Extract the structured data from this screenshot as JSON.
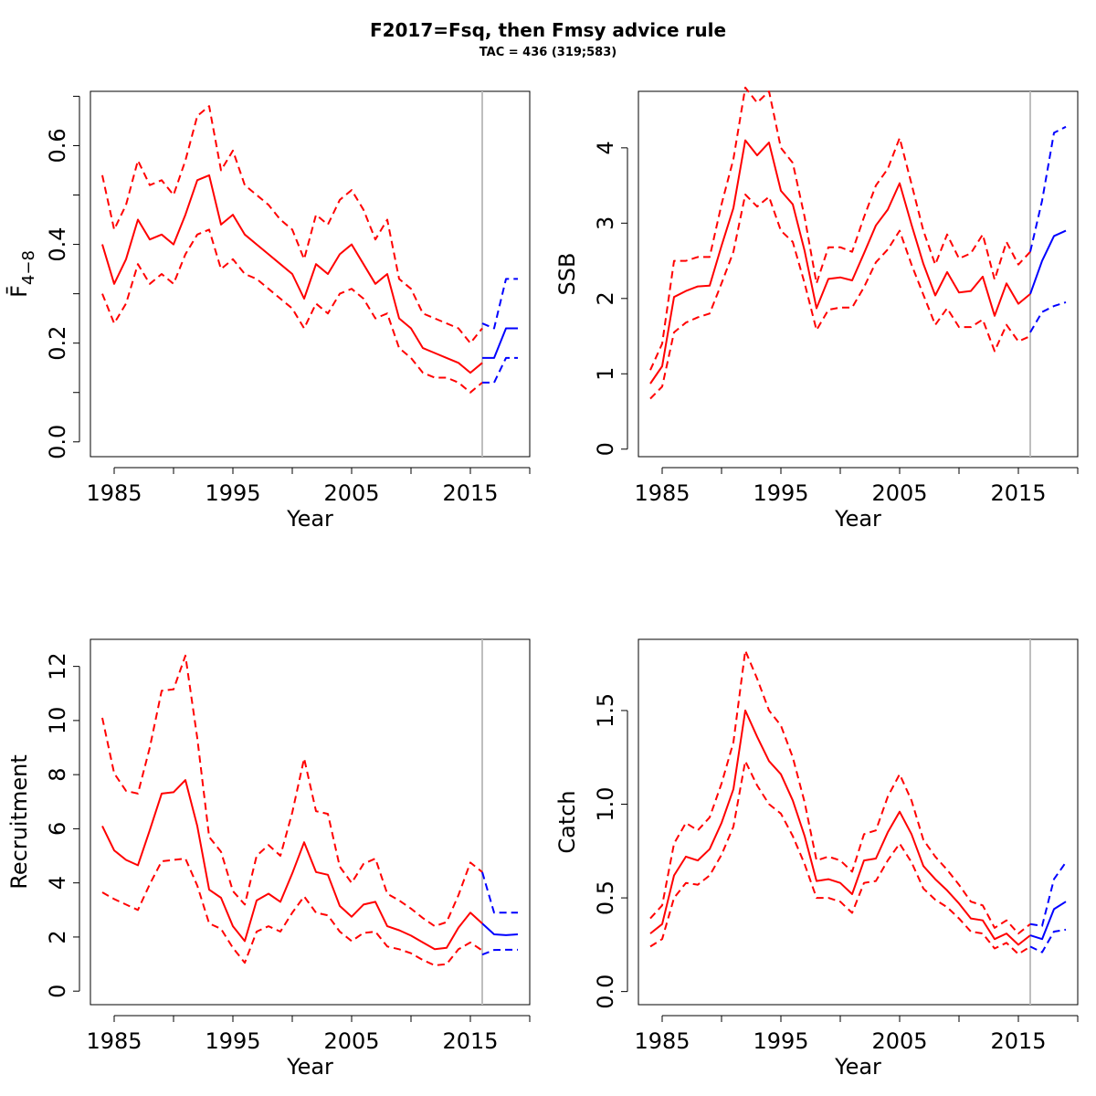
{
  "title": "F2017=Fsq, then  Fmsy advice rule",
  "subtitle": "TAC = 436 (319;583)",
  "colors": {
    "history": "#ff0000",
    "forecast": "#0000ff",
    "divider": "#bebebe",
    "axes": "#000000"
  },
  "divider_year": 2016,
  "chart_data": [
    {
      "type": "line",
      "xlabel": "Year",
      "ylabel": "F̄",
      "ylabel_subscript": "4−8",
      "xlim": [
        1983,
        2020
      ],
      "ylim": [
        -0.03,
        0.71
      ],
      "xticks": [
        1985,
        1990,
        1995,
        2000,
        2005,
        2010,
        2015,
        2020
      ],
      "xtick_labels": [
        "1985",
        "",
        "1995",
        "",
        "2005",
        "",
        "2015",
        ""
      ],
      "yticks": [
        0.0,
        0.1,
        0.2,
        0.3,
        0.4,
        0.5,
        0.6,
        0.7
      ],
      "ytick_labels": [
        "0.0",
        "",
        "0.2",
        "",
        "0.4",
        "",
        "0.6",
        ""
      ],
      "history": {
        "x": [
          1984,
          1985,
          1986,
          1987,
          1988,
          1989,
          1990,
          1991,
          1992,
          1993,
          1994,
          1995,
          1996,
          1997,
          1998,
          1999,
          2000,
          2001,
          2002,
          2003,
          2004,
          2005,
          2006,
          2007,
          2008,
          2009,
          2010,
          2011,
          2012,
          2013,
          2014,
          2015,
          2016
        ],
        "estimate": [
          0.4,
          0.32,
          0.37,
          0.45,
          0.41,
          0.42,
          0.4,
          0.46,
          0.53,
          0.54,
          0.44,
          0.46,
          0.42,
          0.4,
          0.38,
          0.36,
          0.34,
          0.29,
          0.36,
          0.34,
          0.38,
          0.4,
          0.36,
          0.32,
          0.34,
          0.25,
          0.23,
          0.19,
          0.18,
          0.17,
          0.16,
          0.14,
          0.16
        ],
        "lower": [
          0.3,
          0.24,
          0.28,
          0.36,
          0.32,
          0.34,
          0.32,
          0.38,
          0.42,
          0.43,
          0.35,
          0.37,
          0.34,
          0.33,
          0.31,
          0.29,
          0.27,
          0.23,
          0.28,
          0.26,
          0.3,
          0.31,
          0.29,
          0.25,
          0.26,
          0.19,
          0.17,
          0.14,
          0.13,
          0.13,
          0.12,
          0.1,
          0.12
        ],
        "upper": [
          0.54,
          0.43,
          0.48,
          0.57,
          0.52,
          0.53,
          0.5,
          0.57,
          0.66,
          0.68,
          0.55,
          0.59,
          0.52,
          0.5,
          0.48,
          0.45,
          0.43,
          0.37,
          0.46,
          0.44,
          0.49,
          0.51,
          0.47,
          0.41,
          0.45,
          0.33,
          0.31,
          0.26,
          0.25,
          0.24,
          0.23,
          0.2,
          0.23
        ]
      },
      "forecast": {
        "x": [
          2016,
          2017,
          2018,
          2019
        ],
        "estimate": [
          0.17,
          0.17,
          0.23,
          0.23
        ],
        "lower": [
          0.12,
          0.12,
          0.17,
          0.17
        ],
        "upper": [
          0.24,
          0.23,
          0.33,
          0.33
        ]
      }
    },
    {
      "type": "line",
      "xlabel": "Year",
      "ylabel": "SSB",
      "xlim": [
        1983,
        2020
      ],
      "ylim": [
        -0.1,
        4.75
      ],
      "xticks": [
        1985,
        1990,
        1995,
        2000,
        2005,
        2010,
        2015,
        2020
      ],
      "xtick_labels": [
        "1985",
        "",
        "1995",
        "",
        "2005",
        "",
        "2015",
        ""
      ],
      "yticks": [
        0,
        1,
        2,
        3,
        4
      ],
      "ytick_labels": [
        "0",
        "1",
        "2",
        "3",
        "4"
      ],
      "history": {
        "x": [
          1984,
          1985,
          1986,
          1987,
          1988,
          1989,
          1990,
          1991,
          1992,
          1993,
          1994,
          1995,
          1996,
          1997,
          1998,
          1999,
          2000,
          2001,
          2002,
          2003,
          2004,
          2005,
          2006,
          2007,
          2008,
          2009,
          2010,
          2011,
          2012,
          2013,
          2014,
          2015,
          2016
        ],
        "estimate": [
          0.87,
          1.1,
          2.02,
          2.1,
          2.16,
          2.17,
          2.7,
          3.2,
          4.1,
          3.9,
          4.07,
          3.43,
          3.25,
          2.63,
          1.87,
          2.26,
          2.28,
          2.24,
          2.6,
          2.97,
          3.18,
          3.53,
          2.98,
          2.46,
          2.04,
          2.35,
          2.08,
          2.1,
          2.29,
          1.77,
          2.2,
          1.93,
          2.06
        ],
        "lower": [
          0.67,
          0.83,
          1.55,
          1.68,
          1.75,
          1.8,
          2.2,
          2.62,
          3.38,
          3.22,
          3.35,
          2.9,
          2.75,
          2.2,
          1.58,
          1.85,
          1.88,
          1.88,
          2.15,
          2.48,
          2.65,
          2.9,
          2.45,
          2.05,
          1.65,
          1.87,
          1.62,
          1.62,
          1.72,
          1.3,
          1.65,
          1.43,
          1.5
        ],
        "upper": [
          1.05,
          1.4,
          2.5,
          2.5,
          2.55,
          2.55,
          3.25,
          3.85,
          4.8,
          4.6,
          4.75,
          4.0,
          3.8,
          3.08,
          2.2,
          2.68,
          2.68,
          2.62,
          3.08,
          3.5,
          3.72,
          4.13,
          3.52,
          2.9,
          2.45,
          2.85,
          2.53,
          2.6,
          2.85,
          2.25,
          2.75,
          2.45,
          2.62
        ]
      },
      "forecast": {
        "x": [
          2016,
          2017,
          2018,
          2019
        ],
        "estimate": [
          2.06,
          2.5,
          2.83,
          2.9
        ],
        "lower": [
          1.55,
          1.82,
          1.9,
          1.95
        ],
        "upper": [
          2.62,
          3.3,
          4.2,
          4.28
        ]
      }
    },
    {
      "type": "line",
      "xlabel": "Year",
      "ylabel": "Recruitment",
      "xlim": [
        1983,
        2020
      ],
      "ylim": [
        -0.5,
        13
      ],
      "xticks": [
        1985,
        1990,
        1995,
        2000,
        2005,
        2010,
        2015,
        2020
      ],
      "xtick_labels": [
        "1985",
        "",
        "1995",
        "",
        "2005",
        "",
        "2015",
        ""
      ],
      "yticks": [
        0,
        2,
        4,
        6,
        8,
        10,
        12
      ],
      "ytick_labels": [
        "0",
        "2",
        "4",
        "6",
        "8",
        "10",
        "12"
      ],
      "history": {
        "x": [
          1984,
          1985,
          1986,
          1987,
          1988,
          1989,
          1990,
          1991,
          1992,
          1993,
          1994,
          1995,
          1996,
          1997,
          1998,
          1999,
          2000,
          2001,
          2002,
          2003,
          2004,
          2005,
          2006,
          2007,
          2008,
          2009,
          2010,
          2011,
          2012,
          2013,
          2014,
          2015,
          2016
        ],
        "estimate": [
          6.1,
          5.2,
          4.85,
          4.65,
          5.95,
          7.3,
          7.35,
          7.8,
          6.1,
          3.75,
          3.45,
          2.4,
          1.85,
          3.35,
          3.6,
          3.3,
          4.35,
          5.5,
          4.4,
          4.3,
          3.15,
          2.75,
          3.2,
          3.3,
          2.4,
          2.25,
          2.05,
          1.8,
          1.55,
          1.6,
          2.35,
          2.9,
          2.5
        ],
        "lower": [
          3.65,
          3.4,
          3.2,
          3.0,
          3.95,
          4.8,
          4.85,
          4.9,
          3.9,
          2.5,
          2.3,
          1.6,
          1.05,
          2.2,
          2.4,
          2.2,
          2.9,
          3.5,
          2.9,
          2.8,
          2.2,
          1.85,
          2.15,
          2.2,
          1.65,
          1.55,
          1.4,
          1.15,
          0.95,
          1.0,
          1.55,
          1.8,
          1.5
        ],
        "upper": [
          10.1,
          8.05,
          7.4,
          7.3,
          9.0,
          11.1,
          11.15,
          12.4,
          9.35,
          5.7,
          5.15,
          3.7,
          3.2,
          5.0,
          5.4,
          5.0,
          6.6,
          8.6,
          6.65,
          6.55,
          4.6,
          4.0,
          4.7,
          4.9,
          3.6,
          3.35,
          3.05,
          2.7,
          2.4,
          2.55,
          3.55,
          4.75,
          4.4
        ]
      },
      "forecast": {
        "x": [
          2016,
          2017,
          2018,
          2019
        ],
        "estimate": [
          2.5,
          2.1,
          2.07,
          2.1
        ],
        "lower": [
          1.35,
          1.52,
          1.53,
          1.53
        ],
        "upper": [
          4.4,
          2.9,
          2.9,
          2.9
        ]
      }
    },
    {
      "type": "line",
      "xlabel": "Year",
      "ylabel": "Catch",
      "xlim": [
        1983,
        2020
      ],
      "ylim": [
        -0.07,
        1.88
      ],
      "xticks": [
        1985,
        1990,
        1995,
        2000,
        2005,
        2010,
        2015,
        2020
      ],
      "xtick_labels": [
        "1985",
        "",
        "1995",
        "",
        "2005",
        "",
        "2015",
        ""
      ],
      "yticks": [
        0.0,
        0.5,
        1.0,
        1.5
      ],
      "ytick_labels": [
        "0.0",
        "0.5",
        "1.0",
        "1.5"
      ],
      "history": {
        "x": [
          1984,
          1985,
          1986,
          1987,
          1988,
          1989,
          1990,
          1991,
          1992,
          1993,
          1994,
          1995,
          1996,
          1997,
          1998,
          1999,
          2000,
          2001,
          2002,
          2003,
          2004,
          2005,
          2006,
          2007,
          2008,
          2009,
          2010,
          2011,
          2012,
          2013,
          2014,
          2015,
          2016
        ],
        "estimate": [
          0.31,
          0.36,
          0.62,
          0.72,
          0.7,
          0.76,
          0.9,
          1.08,
          1.5,
          1.36,
          1.23,
          1.16,
          1.02,
          0.83,
          0.59,
          0.6,
          0.58,
          0.52,
          0.7,
          0.71,
          0.85,
          0.96,
          0.84,
          0.67,
          0.6,
          0.54,
          0.47,
          0.39,
          0.38,
          0.28,
          0.31,
          0.25,
          0.3
        ],
        "lower": [
          0.24,
          0.28,
          0.5,
          0.58,
          0.57,
          0.62,
          0.73,
          0.88,
          1.23,
          1.1,
          1.0,
          0.95,
          0.83,
          0.68,
          0.5,
          0.5,
          0.48,
          0.42,
          0.58,
          0.59,
          0.7,
          0.79,
          0.69,
          0.55,
          0.49,
          0.45,
          0.39,
          0.32,
          0.31,
          0.23,
          0.26,
          0.2,
          0.24
        ],
        "upper": [
          0.39,
          0.46,
          0.79,
          0.9,
          0.86,
          0.93,
          1.11,
          1.33,
          1.82,
          1.67,
          1.5,
          1.42,
          1.25,
          1.01,
          0.7,
          0.72,
          0.7,
          0.64,
          0.84,
          0.86,
          1.04,
          1.16,
          1.02,
          0.81,
          0.72,
          0.65,
          0.57,
          0.48,
          0.46,
          0.34,
          0.38,
          0.31,
          0.36
        ]
      },
      "forecast": {
        "x": [
          2016,
          2017,
          2018,
          2019
        ],
        "estimate": [
          0.3,
          0.28,
          0.44,
          0.48
        ],
        "lower": [
          0.24,
          0.21,
          0.32,
          0.33
        ],
        "upper": [
          0.36,
          0.35,
          0.6,
          0.69
        ]
      }
    }
  ]
}
